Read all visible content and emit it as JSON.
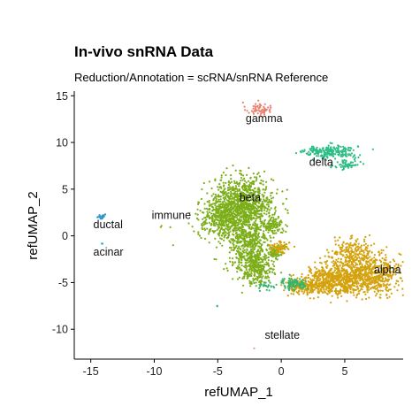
{
  "chart_data": {
    "type": "scatter",
    "title": "In-vivo snRNA Data",
    "subtitle": "Reduction/Annotation = scRNA/snRNA Reference",
    "xlabel": "refUMAP_1",
    "ylabel": "refUMAP_2",
    "xlim": [
      -16.3,
      9.6
    ],
    "ylim": [
      -13.2,
      15.5
    ],
    "xticks": [
      -15,
      -10,
      -5,
      0,
      5
    ],
    "yticks": [
      -10,
      -5,
      0,
      5,
      10,
      15
    ],
    "grid": false,
    "legend": "none",
    "series": [
      {
        "name": "gamma",
        "color": "#E8836F",
        "clusters": [
          {
            "cx": -1.8,
            "cy": 13.6,
            "sx": 0.5,
            "sy": 0.35,
            "n": 60
          }
        ],
        "label": {
          "text": "gamma",
          "x": -2.8,
          "y": 12.2
        }
      },
      {
        "name": "delta",
        "color": "#2EBD86",
        "clusters": [
          {
            "cx": 4.0,
            "cy": 9.0,
            "sx": 1.0,
            "sy": 0.35,
            "n": 220
          },
          {
            "cx": 5.2,
            "cy": 7.6,
            "sx": 0.5,
            "sy": 0.3,
            "n": 60
          },
          {
            "cx": 2.4,
            "cy": 9.1,
            "sx": 0.25,
            "sy": 0.25,
            "n": 20
          }
        ],
        "label": {
          "text": "delta",
          "x": 2.2,
          "y": 7.5
        }
      },
      {
        "name": "beta",
        "color": "#7CAE1A",
        "clusters": [
          {
            "cx": -3.0,
            "cy": 3.6,
            "sx": 1.2,
            "sy": 1.3,
            "n": 900
          },
          {
            "cx": -4.6,
            "cy": 1.8,
            "sx": 1.0,
            "sy": 1.0,
            "n": 400
          },
          {
            "cx": -2.7,
            "cy": -0.9,
            "sx": 0.8,
            "sy": 1.6,
            "n": 500
          },
          {
            "cx": -1.9,
            "cy": -3.6,
            "sx": 0.6,
            "sy": 0.8,
            "n": 250
          },
          {
            "cx": -0.7,
            "cy": 1.2,
            "sx": 0.45,
            "sy": 0.5,
            "n": 120
          },
          {
            "cx": -0.5,
            "cy": -1.8,
            "sx": 0.35,
            "sy": 0.4,
            "n": 80
          }
        ],
        "label": {
          "text": "beta",
          "x": -3.3,
          "y": 3.7
        }
      },
      {
        "name": "immune",
        "color": "#A3A500",
        "clusters": [
          {
            "cx": -9.5,
            "cy": 1.0,
            "sx": 0.08,
            "sy": 0.08,
            "n": 2
          }
        ],
        "label": {
          "text": "immune",
          "x": -10.2,
          "y": 1.8
        }
      },
      {
        "name": "ductal",
        "color": "#2E95C9",
        "clusters": [
          {
            "cx": -14.2,
            "cy": 2.1,
            "sx": 0.18,
            "sy": 0.12,
            "n": 18
          }
        ],
        "label": {
          "text": "ductal",
          "x": -14.8,
          "y": 0.8
        }
      },
      {
        "name": "acinar",
        "color": "#19B9C7",
        "clusters": [
          {
            "cx": -14.1,
            "cy": -0.8,
            "sx": 0.05,
            "sy": 0.05,
            "n": 2
          }
        ],
        "label": {
          "text": "acinar",
          "x": -14.8,
          "y": -2.1
        }
      },
      {
        "name": "alpha",
        "color": "#D4A20D",
        "clusters": [
          {
            "cx": 6.4,
            "cy": -4.2,
            "sx": 1.5,
            "sy": 1.0,
            "n": 900
          },
          {
            "cx": 3.8,
            "cy": -4.8,
            "sx": 1.0,
            "sy": 0.7,
            "n": 350
          },
          {
            "cx": 1.8,
            "cy": -5.4,
            "sx": 0.8,
            "sy": 0.4,
            "n": 200
          },
          {
            "cx": 5.6,
            "cy": -1.8,
            "sx": 0.9,
            "sy": 0.7,
            "n": 200
          },
          {
            "cx": -0.2,
            "cy": -1.2,
            "sx": 0.4,
            "sy": 0.35,
            "n": 60
          }
        ],
        "label": {
          "text": "alpha",
          "x": 7.3,
          "y": -4.0
        }
      },
      {
        "name": "stellate",
        "color": "#35B46A",
        "clusters": [
          {
            "cx": 1.0,
            "cy": -5.1,
            "sx": 0.5,
            "sy": 0.3,
            "n": 90
          },
          {
            "cx": -1.2,
            "cy": -5.3,
            "sx": 0.35,
            "sy": 0.25,
            "n": 25
          },
          {
            "cx": -5.0,
            "cy": -7.5,
            "sx": 0.05,
            "sy": 0.05,
            "n": 2
          }
        ],
        "label": {
          "text": "stellate",
          "x": -1.3,
          "y": -11.0
        }
      },
      {
        "name": "",
        "color": "#E78AB8",
        "clusters": [
          {
            "cx": -2.1,
            "cy": -12.0,
            "sx": 0.05,
            "sy": 0.05,
            "n": 1
          }
        ]
      }
    ]
  }
}
